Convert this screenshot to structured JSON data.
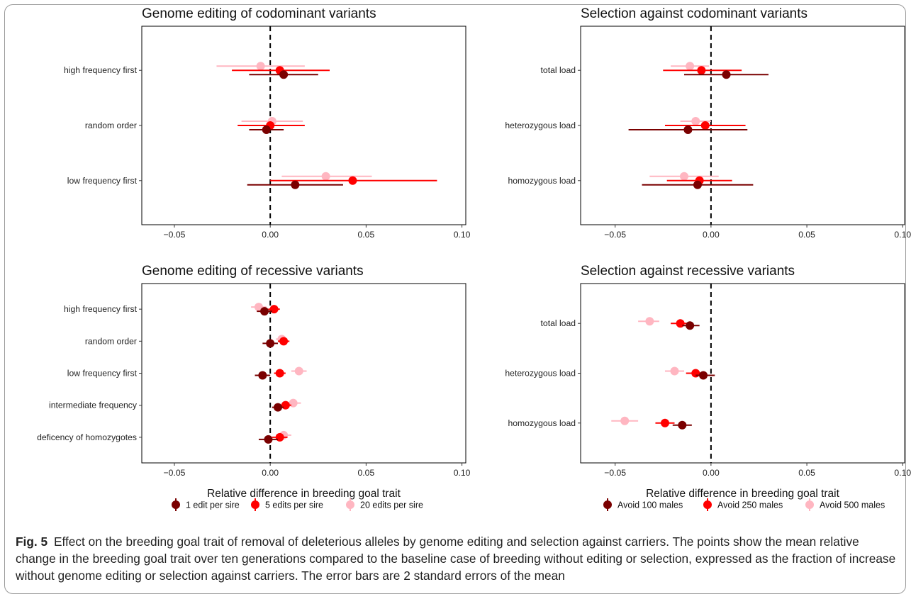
{
  "figure": {
    "caption_label": "Fig. 5",
    "caption_text": "Effect on the breeding goal trait of removal of deleterious alleles by genome editing and selection against carriers. The points show the mean relative change in the breeding goal trait over ten generations compared to the baseline case of breeding without editing or selection, expressed as the fraction of increase without genome editing or selection against carriers. The error bars are 2 standard errors of the mean",
    "colors": {
      "dark": "#7a0000",
      "mid": "#ff0000",
      "light": "#ffb6c1"
    }
  },
  "legends": [
    {
      "entries": [
        {
          "label": "1 edit per sire",
          "color": "#7a0000"
        },
        {
          "label": "5 edits per sire",
          "color": "#ff0000"
        },
        {
          "label": "20 edits per sire",
          "color": "#ffb6c1"
        }
      ]
    },
    {
      "entries": [
        {
          "label": "Avoid 100 males",
          "color": "#7a0000"
        },
        {
          "label": "Avoid 250 males",
          "color": "#ff0000"
        },
        {
          "label": "Avoid 500 males",
          "color": "#ffb6c1"
        }
      ]
    }
  ],
  "chart_data": [
    {
      "type": "scatter",
      "title": "Genome editing of codominant variants",
      "xlabel": "",
      "xlim": [
        -0.067,
        0.102
      ],
      "xticks": [
        "-0.05",
        "0.00",
        "0.05",
        "0.10"
      ],
      "reference_line": 0,
      "grid": false,
      "categories": [
        "high frequency first",
        "random order",
        "low frequency first"
      ],
      "series": [
        {
          "name": "1 edit per sire",
          "color": "#7a0000",
          "values": [
            0.007,
            -0.002,
            0.013
          ],
          "ci_low": [
            -0.011,
            -0.011,
            -0.012
          ],
          "ci_high": [
            0.025,
            0.007,
            0.038
          ]
        },
        {
          "name": "5 edits per sire",
          "color": "#ff0000",
          "values": [
            0.005,
            0.0,
            0.043
          ],
          "ci_low": [
            -0.02,
            -0.017,
            0.0
          ],
          "ci_high": [
            0.031,
            0.018,
            0.087
          ]
        },
        {
          "name": "20 edits per sire",
          "color": "#ffb6c1",
          "values": [
            -0.005,
            0.001,
            0.029
          ],
          "ci_low": [
            -0.028,
            -0.015,
            0.006
          ],
          "ci_high": [
            0.018,
            0.017,
            0.053
          ]
        }
      ]
    },
    {
      "type": "scatter",
      "title": "Selection against codominant variants",
      "xlabel": "",
      "xlim": [
        -0.068,
        0.101
      ],
      "xticks": [
        "-0.05",
        "0.00",
        "0.05",
        "0.10"
      ],
      "reference_line": 0,
      "grid": false,
      "categories": [
        "total load",
        "heterozygous load",
        "homozygous load"
      ],
      "series": [
        {
          "name": "Avoid 100 males",
          "color": "#7a0000",
          "values": [
            0.008,
            -0.012,
            -0.007
          ],
          "ci_low": [
            -0.014,
            -0.043,
            -0.036
          ],
          "ci_high": [
            0.03,
            0.019,
            0.022
          ]
        },
        {
          "name": "Avoid 250 males",
          "color": "#ff0000",
          "values": [
            -0.005,
            -0.003,
            -0.006
          ],
          "ci_low": [
            -0.025,
            -0.024,
            -0.023
          ],
          "ci_high": [
            0.016,
            0.018,
            0.011
          ]
        },
        {
          "name": "Avoid 500 males",
          "color": "#ffb6c1",
          "values": [
            -0.011,
            -0.008,
            -0.014
          ],
          "ci_low": [
            -0.021,
            -0.016,
            -0.032
          ],
          "ci_high": [
            -0.001,
            0.0,
            0.004
          ]
        }
      ]
    },
    {
      "type": "scatter",
      "title": "Genome editing of recessive variants",
      "xlabel": "Relative difference in breeding goal trait",
      "xlim": [
        -0.067,
        0.102
      ],
      "xticks": [
        "-0.05",
        "0.00",
        "0.05",
        "0.10"
      ],
      "reference_line": 0,
      "grid": false,
      "categories": [
        "high frequency first",
        "random order",
        "low frequency first",
        "intermediate frequency",
        "deficency of homozygotes"
      ],
      "series": [
        {
          "name": "1 edit per sire",
          "color": "#7a0000",
          "values": [
            -0.003,
            0.0,
            -0.004,
            0.004,
            -0.001
          ],
          "ci_low": [
            -0.007,
            -0.004,
            -0.008,
            0.001,
            -0.006
          ],
          "ci_high": [
            0.001,
            0.004,
            0.0,
            0.007,
            0.004
          ]
        },
        {
          "name": "5 edits per sire",
          "color": "#ff0000",
          "values": [
            0.002,
            0.007,
            0.005,
            0.008,
            0.005
          ],
          "ci_low": [
            -0.001,
            0.004,
            0.002,
            0.005,
            0.001
          ],
          "ci_high": [
            0.005,
            0.01,
            0.008,
            0.011,
            0.009
          ]
        },
        {
          "name": "20 edits per sire",
          "color": "#ffb6c1",
          "values": [
            -0.006,
            0.006,
            0.015,
            0.012,
            0.007
          ],
          "ci_low": [
            -0.01,
            0.003,
            0.011,
            0.008,
            0.003
          ],
          "ci_high": [
            -0.002,
            0.009,
            0.019,
            0.016,
            0.011
          ]
        }
      ]
    },
    {
      "type": "scatter",
      "title": "Selection against recessive variants",
      "xlabel": "Relative difference in breeding goal trait",
      "xlim": [
        -0.068,
        0.101
      ],
      "xticks": [
        "-0.05",
        "0.00",
        "0.05",
        "0.10"
      ],
      "reference_line": 0,
      "grid": false,
      "categories": [
        "total load",
        "heterozygous load",
        "homozygous load"
      ],
      "series": [
        {
          "name": "Avoid 100 males",
          "color": "#7a0000",
          "values": [
            -0.011,
            -0.004,
            -0.015
          ],
          "ci_low": [
            -0.015,
            -0.008,
            -0.02
          ],
          "ci_high": [
            -0.006,
            0.002,
            -0.01
          ]
        },
        {
          "name": "Avoid 250 males",
          "color": "#ff0000",
          "values": [
            -0.016,
            -0.008,
            -0.024
          ],
          "ci_low": [
            -0.021,
            -0.013,
            -0.029
          ],
          "ci_high": [
            -0.012,
            -0.003,
            -0.019
          ]
        },
        {
          "name": "Avoid 500 males",
          "color": "#ffb6c1",
          "values": [
            -0.032,
            -0.019,
            -0.045
          ],
          "ci_low": [
            -0.038,
            -0.024,
            -0.052
          ],
          "ci_high": [
            -0.027,
            -0.014,
            -0.038
          ]
        }
      ]
    }
  ]
}
